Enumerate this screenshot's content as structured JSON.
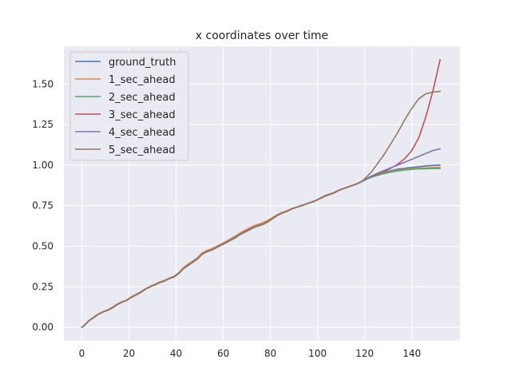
{
  "chart_data": {
    "type": "line",
    "title": "x coordinates over time",
    "xlabel": "",
    "ylabel": "",
    "xlim": [
      -7.6,
      160.4
    ],
    "ylim": [
      -0.0825,
      1.7325
    ],
    "xticks": [
      0,
      20,
      40,
      60,
      80,
      100,
      120,
      140
    ],
    "yticks": [
      0.0,
      0.25,
      0.5,
      0.75,
      1.0,
      1.25,
      1.5
    ],
    "ytick_labels": [
      "0.00",
      "0.25",
      "0.50",
      "0.75",
      "1.00",
      "1.25",
      "1.50"
    ],
    "grid": true,
    "legend_position": "top-left",
    "series": [
      {
        "name": "ground_truth",
        "color": "#4c72b0",
        "x": [
          0,
          1,
          3,
          5,
          7,
          9,
          11,
          13,
          15,
          17,
          19,
          21,
          23,
          25,
          27,
          29,
          31,
          33,
          35,
          37,
          39,
          41,
          43,
          45,
          47,
          49,
          51,
          53,
          55,
          57,
          59,
          61,
          63,
          65,
          67,
          69,
          71,
          73,
          75,
          77,
          79,
          81,
          83,
          85,
          87,
          89,
          91,
          93,
          95,
          97,
          99,
          101,
          103,
          105,
          107,
          109,
          111,
          113,
          115,
          117,
          119,
          121,
          123,
          125,
          128,
          131,
          134,
          137,
          140,
          143,
          146,
          149,
          152
        ],
        "y": [
          0.0,
          0.01,
          0.04,
          0.06,
          0.08,
          0.095,
          0.105,
          0.12,
          0.14,
          0.155,
          0.165,
          0.185,
          0.2,
          0.215,
          0.235,
          0.25,
          0.262,
          0.275,
          0.285,
          0.3,
          0.31,
          0.33,
          0.36,
          0.38,
          0.4,
          0.42,
          0.45,
          0.465,
          0.475,
          0.49,
          0.505,
          0.52,
          0.535,
          0.55,
          0.57,
          0.585,
          0.6,
          0.615,
          0.625,
          0.635,
          0.65,
          0.67,
          0.69,
          0.705,
          0.715,
          0.73,
          0.74,
          0.75,
          0.76,
          0.77,
          0.78,
          0.795,
          0.81,
          0.82,
          0.83,
          0.845,
          0.855,
          0.865,
          0.875,
          0.885,
          0.9,
          0.915,
          0.93,
          0.94,
          0.955,
          0.965,
          0.975,
          0.98,
          0.985,
          0.99,
          0.995,
          0.998,
          1.0
        ]
      },
      {
        "name": "1_sec_ahead",
        "color": "#dd8452",
        "x": [
          0,
          1,
          3,
          5,
          7,
          9,
          11,
          13,
          15,
          17,
          19,
          21,
          23,
          25,
          27,
          29,
          31,
          33,
          35,
          37,
          39,
          41,
          43,
          45,
          47,
          49,
          51,
          53,
          55,
          57,
          59,
          61,
          63,
          65,
          67,
          69,
          71,
          73,
          75,
          77,
          79,
          81,
          83,
          85,
          87,
          89,
          91,
          93,
          95,
          97,
          99,
          101,
          103,
          105,
          107,
          109,
          111,
          113,
          115,
          117,
          119,
          121,
          123,
          125,
          128,
          131,
          134,
          137,
          140,
          143,
          146,
          149,
          152
        ],
        "y": [
          0.0,
          0.012,
          0.042,
          0.062,
          0.082,
          0.097,
          0.108,
          0.124,
          0.143,
          0.158,
          0.168,
          0.188,
          0.203,
          0.219,
          0.238,
          0.253,
          0.265,
          0.279,
          0.289,
          0.303,
          0.314,
          0.335,
          0.366,
          0.389,
          0.408,
          0.428,
          0.458,
          0.473,
          0.484,
          0.498,
          0.513,
          0.528,
          0.545,
          0.562,
          0.58,
          0.597,
          0.612,
          0.626,
          0.636,
          0.646,
          0.66,
          0.678,
          0.695,
          0.708,
          0.718,
          0.732,
          0.741,
          0.75,
          0.759,
          0.768,
          0.778,
          0.792,
          0.806,
          0.817,
          0.828,
          0.843,
          0.856,
          0.866,
          0.876,
          0.887,
          0.9,
          0.914,
          0.927,
          0.937,
          0.95,
          0.96,
          0.968,
          0.974,
          0.978,
          0.981,
          0.983,
          0.985,
          0.986
        ]
      },
      {
        "name": "2_sec_ahead",
        "color": "#55a868",
        "x": [
          0,
          1,
          3,
          5,
          7,
          9,
          11,
          13,
          15,
          17,
          19,
          21,
          23,
          25,
          27,
          29,
          31,
          33,
          35,
          37,
          39,
          41,
          43,
          45,
          47,
          49,
          51,
          53,
          55,
          57,
          59,
          61,
          63,
          65,
          67,
          69,
          71,
          73,
          75,
          77,
          79,
          81,
          83,
          85,
          87,
          89,
          91,
          93,
          95,
          97,
          99,
          101,
          103,
          105,
          107,
          109,
          111,
          113,
          115,
          117,
          119,
          121,
          123,
          125,
          128,
          131,
          134,
          137,
          140,
          143,
          146,
          149,
          152
        ],
        "y": [
          0.0,
          0.011,
          0.041,
          0.061,
          0.081,
          0.096,
          0.106,
          0.122,
          0.141,
          0.156,
          0.166,
          0.186,
          0.201,
          0.217,
          0.236,
          0.251,
          0.263,
          0.277,
          0.287,
          0.301,
          0.312,
          0.332,
          0.362,
          0.383,
          0.403,
          0.423,
          0.452,
          0.468,
          0.478,
          0.493,
          0.508,
          0.523,
          0.538,
          0.554,
          0.573,
          0.589,
          0.604,
          0.618,
          0.628,
          0.638,
          0.653,
          0.672,
          0.691,
          0.705,
          0.715,
          0.73,
          0.739,
          0.749,
          0.759,
          0.769,
          0.779,
          0.794,
          0.808,
          0.818,
          0.829,
          0.844,
          0.855,
          0.865,
          0.875,
          0.886,
          0.9,
          0.914,
          0.926,
          0.935,
          0.947,
          0.956,
          0.964,
          0.97,
          0.974,
          0.977,
          0.978,
          0.979,
          0.979
        ]
      },
      {
        "name": "3_sec_ahead",
        "color": "#c44e52",
        "x": [
          0,
          1,
          3,
          5,
          7,
          9,
          11,
          13,
          15,
          17,
          19,
          21,
          23,
          25,
          27,
          29,
          31,
          33,
          35,
          37,
          39,
          41,
          43,
          45,
          47,
          49,
          51,
          53,
          55,
          57,
          59,
          61,
          63,
          65,
          67,
          69,
          71,
          73,
          75,
          77,
          79,
          81,
          83,
          85,
          87,
          89,
          91,
          93,
          95,
          97,
          99,
          101,
          103,
          105,
          107,
          109,
          111,
          113,
          115,
          117,
          119,
          121,
          123,
          125,
          128,
          131,
          134,
          137,
          140,
          143,
          146,
          149,
          152
        ],
        "y": [
          0.0,
          0.01,
          0.04,
          0.06,
          0.08,
          0.095,
          0.105,
          0.121,
          0.14,
          0.155,
          0.165,
          0.185,
          0.2,
          0.216,
          0.235,
          0.25,
          0.262,
          0.276,
          0.286,
          0.3,
          0.311,
          0.331,
          0.361,
          0.382,
          0.402,
          0.422,
          0.451,
          0.467,
          0.477,
          0.492,
          0.507,
          0.522,
          0.537,
          0.553,
          0.572,
          0.588,
          0.603,
          0.617,
          0.627,
          0.637,
          0.652,
          0.671,
          0.69,
          0.704,
          0.714,
          0.729,
          0.739,
          0.749,
          0.759,
          0.769,
          0.779,
          0.794,
          0.809,
          0.819,
          0.83,
          0.845,
          0.856,
          0.866,
          0.876,
          0.887,
          0.902,
          0.917,
          0.932,
          0.942,
          0.96,
          0.98,
          1.005,
          1.04,
          1.09,
          1.17,
          1.3,
          1.46,
          1.65
        ]
      },
      {
        "name": "4_sec_ahead",
        "color": "#8172b3",
        "x": [
          0,
          1,
          3,
          5,
          7,
          9,
          11,
          13,
          15,
          17,
          19,
          21,
          23,
          25,
          27,
          29,
          31,
          33,
          35,
          37,
          39,
          41,
          43,
          45,
          47,
          49,
          51,
          53,
          55,
          57,
          59,
          61,
          63,
          65,
          67,
          69,
          71,
          73,
          75,
          77,
          79,
          81,
          83,
          85,
          87,
          89,
          91,
          93,
          95,
          97,
          99,
          101,
          103,
          105,
          107,
          109,
          111,
          113,
          115,
          117,
          119,
          121,
          123,
          125,
          128,
          131,
          134,
          137,
          140,
          143,
          146,
          149,
          152
        ],
        "y": [
          0.0,
          0.01,
          0.04,
          0.06,
          0.08,
          0.095,
          0.105,
          0.12,
          0.14,
          0.155,
          0.165,
          0.185,
          0.2,
          0.215,
          0.235,
          0.25,
          0.262,
          0.275,
          0.285,
          0.3,
          0.31,
          0.33,
          0.36,
          0.381,
          0.401,
          0.421,
          0.451,
          0.466,
          0.476,
          0.491,
          0.506,
          0.521,
          0.536,
          0.552,
          0.571,
          0.587,
          0.602,
          0.616,
          0.626,
          0.636,
          0.651,
          0.671,
          0.69,
          0.705,
          0.715,
          0.73,
          0.74,
          0.75,
          0.76,
          0.77,
          0.78,
          0.795,
          0.81,
          0.82,
          0.83,
          0.845,
          0.855,
          0.865,
          0.876,
          0.887,
          0.902,
          0.918,
          0.934,
          0.947,
          0.965,
          0.983,
          1.0,
          1.018,
          1.036,
          1.054,
          1.072,
          1.09,
          1.1
        ]
      },
      {
        "name": "5_sec_ahead",
        "color": "#937860",
        "x": [
          0,
          1,
          3,
          5,
          7,
          9,
          11,
          13,
          15,
          17,
          19,
          21,
          23,
          25,
          27,
          29,
          31,
          33,
          35,
          37,
          39,
          41,
          43,
          45,
          47,
          49,
          51,
          53,
          55,
          57,
          59,
          61,
          63,
          65,
          67,
          69,
          71,
          73,
          75,
          77,
          79,
          81,
          83,
          85,
          87,
          89,
          91,
          93,
          95,
          97,
          99,
          101,
          103,
          105,
          107,
          109,
          111,
          113,
          115,
          117,
          119,
          121,
          123,
          125,
          128,
          131,
          134,
          137,
          140,
          143,
          146,
          149,
          152
        ],
        "y": [
          0.0,
          0.01,
          0.04,
          0.06,
          0.08,
          0.095,
          0.105,
          0.12,
          0.14,
          0.155,
          0.165,
          0.185,
          0.2,
          0.215,
          0.235,
          0.25,
          0.262,
          0.275,
          0.285,
          0.3,
          0.31,
          0.33,
          0.36,
          0.381,
          0.401,
          0.421,
          0.451,
          0.466,
          0.476,
          0.491,
          0.506,
          0.521,
          0.536,
          0.552,
          0.571,
          0.587,
          0.602,
          0.616,
          0.626,
          0.636,
          0.651,
          0.671,
          0.69,
          0.705,
          0.715,
          0.73,
          0.74,
          0.75,
          0.76,
          0.77,
          0.78,
          0.795,
          0.81,
          0.82,
          0.83,
          0.845,
          0.855,
          0.865,
          0.876,
          0.887,
          0.902,
          0.93,
          0.96,
          1.0,
          1.06,
          1.13,
          1.2,
          1.28,
          1.35,
          1.41,
          1.44,
          1.45,
          1.455
        ]
      }
    ]
  }
}
